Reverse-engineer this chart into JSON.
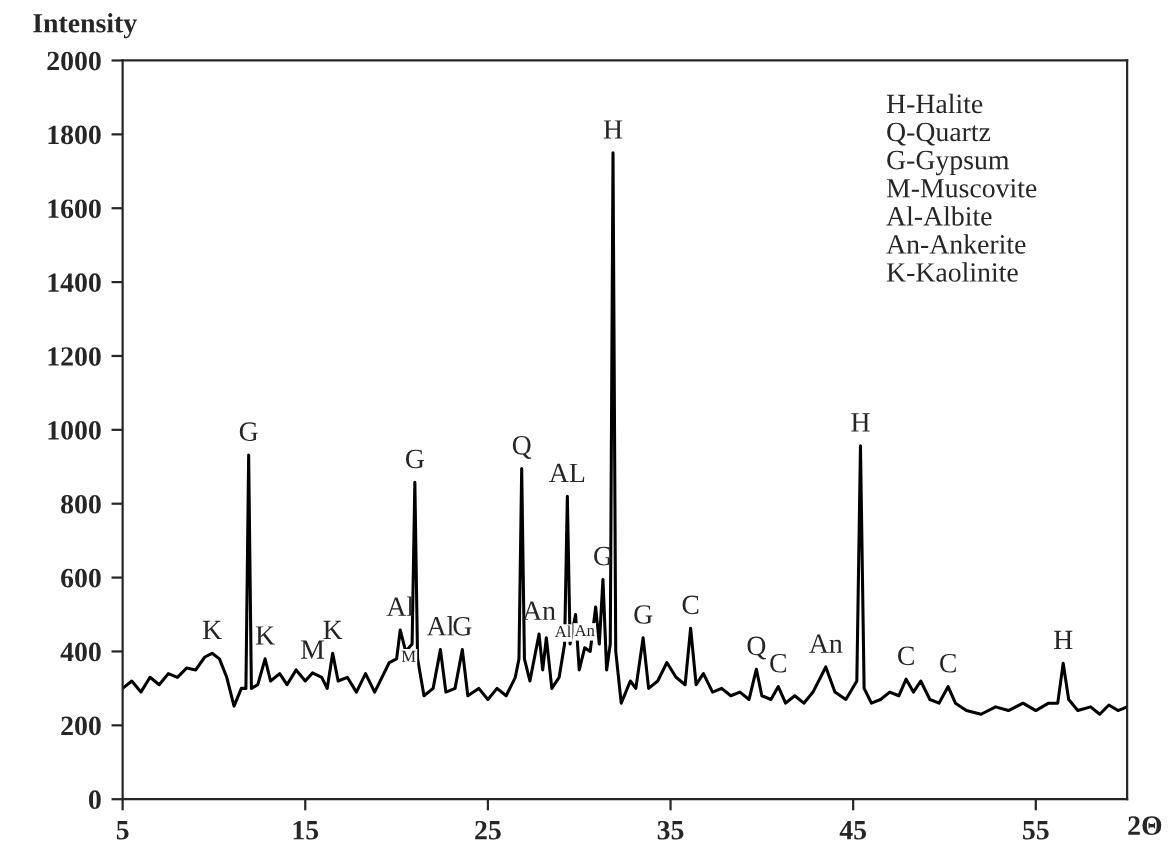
{
  "chart_data": {
    "type": "line",
    "ylabel": "Intensity",
    "xlim": [
      5,
      60
    ],
    "xlabel": "2Θ",
    "xticks": [
      5,
      15,
      25,
      35,
      45,
      55
    ],
    "ylim": [
      0,
      2000
    ],
    "yticks": [
      0,
      200,
      400,
      600,
      800,
      1000,
      1200,
      1400,
      1600,
      1800,
      2000
    ],
    "grid": false,
    "legend": false,
    "marker": "none",
    "line_style": "solid",
    "series": [
      {
        "color": "#000000",
        "x": [
          5.0,
          5.5,
          6.0,
          6.5,
          7.0,
          7.5,
          8.0,
          8.5,
          9.0,
          9.5,
          9.9,
          10.3,
          10.7,
          11.1,
          11.5,
          11.75,
          11.9,
          12.05,
          12.4,
          12.8,
          13.1,
          13.6,
          14.0,
          14.5,
          15.0,
          15.4,
          15.9,
          16.2,
          16.5,
          16.8,
          17.3,
          17.8,
          18.3,
          18.8,
          19.2,
          19.6,
          20.0,
          20.2,
          20.5,
          20.85,
          21.0,
          21.15,
          21.5,
          22.0,
          22.4,
          22.7,
          23.2,
          23.6,
          23.9,
          24.5,
          25.0,
          25.5,
          26.0,
          26.5,
          26.7,
          26.85,
          27.0,
          27.3,
          27.8,
          28.0,
          28.2,
          28.5,
          28.9,
          29.2,
          29.35,
          29.5,
          29.8,
          30.0,
          30.3,
          30.6,
          30.9,
          31.1,
          31.3,
          31.5,
          31.7,
          31.85,
          32.0,
          32.3,
          32.8,
          33.1,
          33.5,
          33.8,
          34.3,
          34.8,
          35.3,
          35.8,
          36.1,
          36.4,
          36.8,
          37.3,
          37.8,
          38.3,
          38.8,
          39.3,
          39.7,
          40.0,
          40.5,
          40.9,
          41.3,
          41.8,
          42.3,
          42.8,
          43.5,
          44.0,
          44.6,
          45.2,
          45.4,
          45.6,
          46.0,
          46.5,
          47.0,
          47.5,
          47.9,
          48.3,
          48.7,
          49.2,
          49.7,
          50.2,
          50.6,
          51.2,
          52.0,
          52.8,
          53.5,
          54.3,
          55.0,
          55.7,
          56.2,
          56.5,
          56.8,
          57.3,
          58.0,
          58.5,
          59.0,
          59.5,
          60.0
        ],
        "values": [
          300,
          320,
          290,
          330,
          310,
          340,
          330,
          355,
          350,
          385,
          395,
          380,
          330,
          252,
          300,
          300,
          932,
          300,
          310,
          380,
          320,
          340,
          310,
          350,
          320,
          342,
          330,
          300,
          395,
          320,
          330,
          290,
          340,
          290,
          330,
          370,
          380,
          458,
          400,
          420,
          858,
          380,
          280,
          300,
          405,
          290,
          300,
          405,
          280,
          300,
          270,
          300,
          280,
          330,
          380,
          895,
          380,
          320,
          447,
          350,
          437,
          300,
          330,
          420,
          820,
          420,
          500,
          350,
          410,
          400,
          520,
          420,
          595,
          350,
          420,
          1750,
          400,
          260,
          320,
          300,
          437,
          300,
          320,
          370,
          330,
          310,
          463,
          310,
          340,
          290,
          300,
          280,
          290,
          270,
          352,
          280,
          270,
          305,
          260,
          280,
          260,
          290,
          358,
          290,
          270,
          320,
          957,
          300,
          260,
          270,
          290,
          280,
          325,
          290,
          320,
          270,
          260,
          305,
          260,
          240,
          230,
          250,
          240,
          260,
          240,
          260,
          260,
          368,
          270,
          240,
          250,
          230,
          255,
          240,
          250
        ]
      }
    ],
    "annotations": [
      {
        "text": "K",
        "x": 9.9,
        "y": 395
      },
      {
        "text": "G",
        "x": 11.9,
        "y": 932
      },
      {
        "text": "K",
        "x": 12.8,
        "y": 380
      },
      {
        "text": "M",
        "x": 15.4,
        "y": 342
      },
      {
        "text": "K",
        "x": 16.5,
        "y": 395
      },
      {
        "text": "M",
        "x": 19.8,
        "y": 370
      },
      {
        "text": "Al",
        "x": 20.2,
        "y": 458
      },
      {
        "text": "G",
        "x": 21.0,
        "y": 858
      },
      {
        "text": "Al",
        "x": 22.4,
        "y": 405
      },
      {
        "text": "G",
        "x": 23.6,
        "y": 405
      },
      {
        "text": "Q",
        "x": 26.85,
        "y": 895
      },
      {
        "text": "An",
        "x": 27.8,
        "y": 447
      },
      {
        "text": "Al",
        "x": 28.2,
        "y": 437
      },
      {
        "text": "AL",
        "x": 29.35,
        "y": 820
      },
      {
        "text": "An",
        "x": 30.3,
        "y": 410
      },
      {
        "text": "G",
        "x": 31.3,
        "y": 595
      },
      {
        "text": "H",
        "x": 31.85,
        "y": 1750
      },
      {
        "text": "G",
        "x": 33.5,
        "y": 437
      },
      {
        "text": "C",
        "x": 36.1,
        "y": 463
      },
      {
        "text": "Q",
        "x": 39.7,
        "y": 352
      },
      {
        "text": "C",
        "x": 40.9,
        "y": 305
      },
      {
        "text": "An",
        "x": 43.5,
        "y": 358
      },
      {
        "text": "H",
        "x": 45.4,
        "y": 957
      },
      {
        "text": "C",
        "x": 47.9,
        "y": 325
      },
      {
        "text": "C",
        "x": 50.2,
        "y": 305
      },
      {
        "text": "H",
        "x": 56.5,
        "y": 368
      },
      "H-Halite\nQ-Quartz\nG-Gypsum\nM-Muscovite\nAl-Albite\nAn-Ankerite\nK-Kaolinite"
    ]
  }
}
